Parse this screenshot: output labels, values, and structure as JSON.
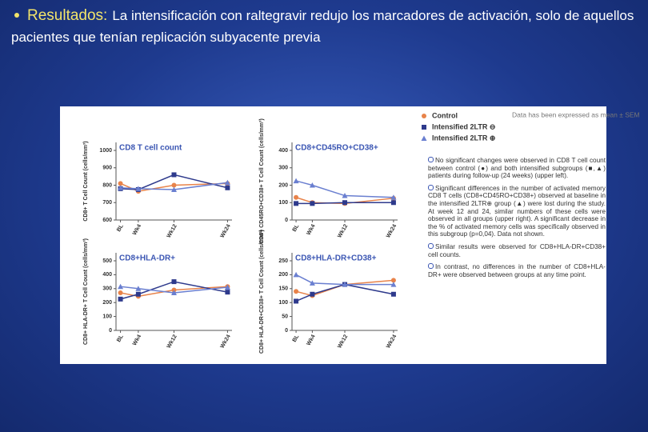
{
  "slide": {
    "lead": "Resultados:",
    "text": "La intensificación con raltegravir  redujo los marcadores de activación, solo de aquellos pacientes que tenían replicación subyacente previa"
  },
  "figure": {
    "note": "Data has been expressed as mean ± SEM",
    "findings": [
      "No significant changes were observed in CD8 T cell count between control (●) and both intensified subgroups (■,▲) patients during follow-up (24 weeks) (upper left).",
      "Significant differences in the number of activated memory CD8 T cells (CD8+CD45RO+CD38+) observed at baseline in the intensified 2LTR⊕ group (▲) were lost during the study. At week 12 and 24, similar numbers of these cells were observed in all groups (upper right). A significant decrease in the % of activated memory cells was specifically observed in this subgroup (p=0,04). Data not shown.",
      "Similar results were observed for CD8+HLA-DR+CD38+ cell counts.",
      "In contrast, no differences in the number of CD8+HLA-DR+ were observed between groups at any time point."
    ]
  },
  "chart_data": [
    {
      "type": "line",
      "title": "CD8 T cell count",
      "y_label": "CD8+ T Cell Count (cells/mm³)",
      "x": [
        0,
        4,
        12,
        24
      ],
      "xlim": [
        -1,
        25
      ],
      "xticks": [
        {
          "value": 0,
          "label": "BL"
        },
        {
          "value": 4,
          "label": "Wk4"
        },
        {
          "value": 12,
          "label": "Wk12"
        },
        {
          "value": 24,
          "label": "Wk24"
        }
      ],
      "ylim": [
        600,
        1000
      ],
      "yticks": [
        600,
        700,
        800,
        900,
        1000
      ],
      "series": [
        {
          "name": "Control",
          "color": "#e8834a",
          "values": [
            810,
            765,
            800,
            810
          ]
        },
        {
          "name": "Intensified 2LTR ⊖",
          "color": "#2e3a8c",
          "values": [
            780,
            775,
            860,
            785
          ]
        },
        {
          "name": "Intensified 2LTR ⊕",
          "color": "#6a7fd0",
          "values": [
            785,
            780,
            775,
            815
          ]
        }
      ]
    },
    {
      "type": "line",
      "title": "CD8+CD45RO+CD38+",
      "y_label": "CD8+ CD45RO+CD38+ T Cell Count (cells/mm³)",
      "x": [
        0,
        4,
        12,
        24
      ],
      "xlim": [
        -1,
        25
      ],
      "xticks": [
        {
          "value": 0,
          "label": "BL"
        },
        {
          "value": 4,
          "label": "Wk4"
        },
        {
          "value": 12,
          "label": "Wk12"
        },
        {
          "value": 24,
          "label": "Wk24"
        }
      ],
      "ylim": [
        0,
        400
      ],
      "yticks": [
        0,
        100,
        200,
        300,
        400
      ],
      "series": [
        {
          "color": "#e8834a",
          "values": [
            130,
            100,
            95,
            125
          ]
        },
        {
          "color": "#2e3a8c",
          "values": [
            95,
            95,
            100,
            100
          ]
        },
        {
          "color": "#6a7fd0",
          "values": [
            225,
            200,
            140,
            130
          ]
        }
      ]
    },
    {
      "type": "line",
      "title": "CD8+HLA-DR+",
      "y_label": "CD8+ HLA-DR+ T Cell Count (cells/mm³)",
      "x": [
        0,
        4,
        12,
        24
      ],
      "xlim": [
        -1,
        25
      ],
      "xticks": [
        {
          "value": 0,
          "label": "BL"
        },
        {
          "value": 4,
          "label": "Wk4"
        },
        {
          "value": 12,
          "label": "Wk12"
        },
        {
          "value": 24,
          "label": "Wk24"
        }
      ],
      "ylim": [
        0,
        500
      ],
      "yticks": [
        0,
        100,
        200,
        300,
        400,
        500
      ],
      "series": [
        {
          "color": "#e8834a",
          "values": [
            270,
            245,
            290,
            315
          ]
        },
        {
          "color": "#2e3a8c",
          "values": [
            225,
            260,
            350,
            275
          ]
        },
        {
          "color": "#6a7fd0",
          "values": [
            315,
            300,
            270,
            310
          ]
        }
      ]
    },
    {
      "type": "line",
      "title": "CD8+HLA-DR+CD38+",
      "y_label": "CD8+ HLA-DR+CD38+ T Cell Count (cells/mm³)",
      "x": [
        0,
        4,
        12,
        24
      ],
      "xlim": [
        -1,
        25
      ],
      "xticks": [
        {
          "value": 0,
          "label": "BL"
        },
        {
          "value": 4,
          "label": "Wk4"
        },
        {
          "value": 12,
          "label": "Wk12"
        },
        {
          "value": 24,
          "label": "Wk24"
        }
      ],
      "ylim": [
        0,
        250
      ],
      "yticks": [
        0,
        50,
        100,
        150,
        200,
        250
      ],
      "series": [
        {
          "color": "#e8834a",
          "values": [
            140,
            125,
            165,
            180
          ]
        },
        {
          "color": "#2e3a8c",
          "values": [
            105,
            130,
            165,
            130
          ]
        },
        {
          "color": "#6a7fd0",
          "values": [
            200,
            170,
            165,
            165
          ]
        }
      ]
    }
  ]
}
